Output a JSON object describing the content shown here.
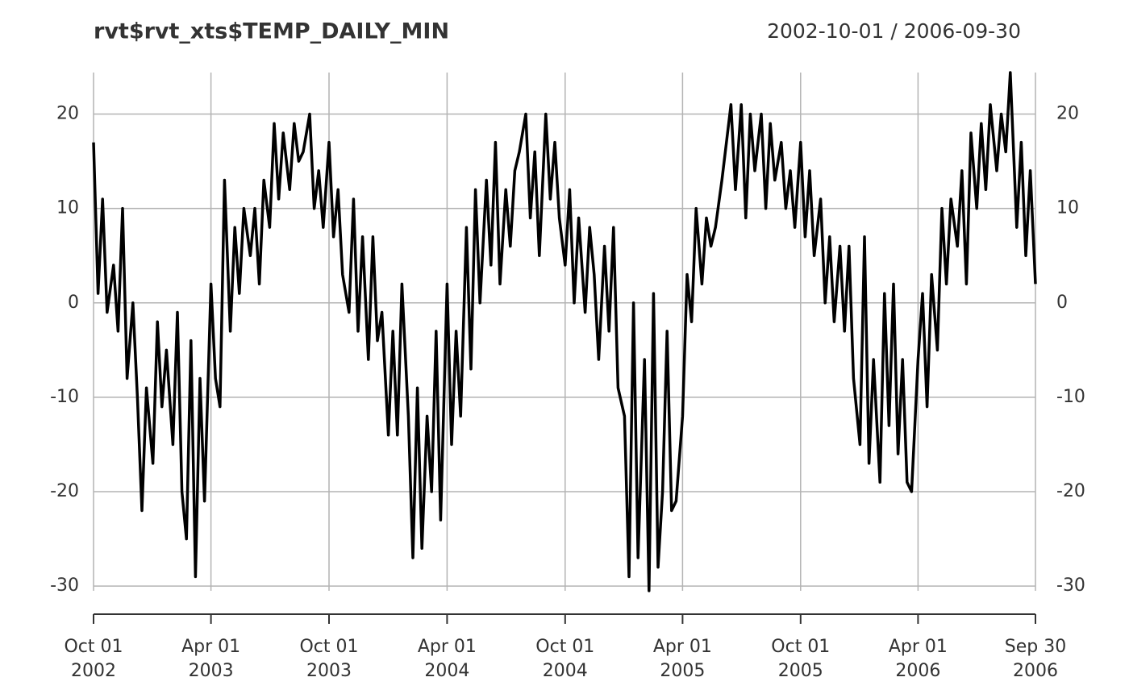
{
  "chart_data": {
    "type": "line",
    "title": "rvt$rvt_xts$TEMP_DAILY_MIN",
    "subtitle": "2002-10-01 / 2006-09-30",
    "color": "#000000",
    "grid": true,
    "xlim": [
      "2002-10-01",
      "2006-09-30"
    ],
    "xticks": [
      {
        "value": "2002-10-01",
        "label": [
          "Oct 01",
          "2002"
        ]
      },
      {
        "value": "2003-04-01",
        "label": [
          "Apr 01",
          "2003"
        ]
      },
      {
        "value": "2003-10-01",
        "label": [
          "Oct 01",
          "2003"
        ]
      },
      {
        "value": "2004-04-01",
        "label": [
          "Apr 01",
          "2004"
        ]
      },
      {
        "value": "2004-10-01",
        "label": [
          "Oct 01",
          "2004"
        ]
      },
      {
        "value": "2005-04-01",
        "label": [
          "Apr 01",
          "2005"
        ]
      },
      {
        "value": "2005-10-01",
        "label": [
          "Oct 01",
          "2005"
        ]
      },
      {
        "value": "2006-04-01",
        "label": [
          "Apr 01",
          "2006"
        ]
      },
      {
        "value": "2006-09-30",
        "label": [
          "Sep 30",
          "2006"
        ]
      }
    ],
    "ylim": [
      -30.5,
      24.4
    ],
    "yticks": [
      20,
      10,
      0,
      -10,
      -20,
      -30
    ],
    "x": [
      "2002-10-01",
      "2002-10-08",
      "2002-10-15",
      "2002-10-22",
      "2002-11-01",
      "2002-11-08",
      "2002-11-15",
      "2002-11-22",
      "2002-12-01",
      "2002-12-08",
      "2002-12-15",
      "2002-12-22",
      "2003-01-01",
      "2003-01-08",
      "2003-01-15",
      "2003-01-22",
      "2003-02-01",
      "2003-02-08",
      "2003-02-15",
      "2003-02-22",
      "2003-03-01",
      "2003-03-08",
      "2003-03-15",
      "2003-03-22",
      "2003-04-01",
      "2003-04-08",
      "2003-04-15",
      "2003-04-22",
      "2003-05-01",
      "2003-05-08",
      "2003-05-15",
      "2003-05-22",
      "2003-06-01",
      "2003-06-08",
      "2003-06-15",
      "2003-06-22",
      "2003-07-01",
      "2003-07-08",
      "2003-07-15",
      "2003-07-22",
      "2003-08-01",
      "2003-08-08",
      "2003-08-15",
      "2003-08-22",
      "2003-09-01",
      "2003-09-08",
      "2003-09-15",
      "2003-09-22",
      "2003-10-01",
      "2003-10-08",
      "2003-10-15",
      "2003-10-22",
      "2003-11-01",
      "2003-11-08",
      "2003-11-15",
      "2003-11-22",
      "2003-12-01",
      "2003-12-08",
      "2003-12-15",
      "2003-12-22",
      "2004-01-01",
      "2004-01-08",
      "2004-01-15",
      "2004-01-22",
      "2004-02-01",
      "2004-02-08",
      "2004-02-15",
      "2004-02-22",
      "2004-03-01",
      "2004-03-08",
      "2004-03-15",
      "2004-03-22",
      "2004-04-01",
      "2004-04-08",
      "2004-04-15",
      "2004-04-22",
      "2004-05-01",
      "2004-05-08",
      "2004-05-15",
      "2004-05-22",
      "2004-06-01",
      "2004-06-08",
      "2004-06-15",
      "2004-06-22",
      "2004-07-01",
      "2004-07-08",
      "2004-07-15",
      "2004-07-22",
      "2004-08-01",
      "2004-08-08",
      "2004-08-15",
      "2004-08-22",
      "2004-09-01",
      "2004-09-08",
      "2004-09-15",
      "2004-09-22",
      "2004-10-01",
      "2004-10-08",
      "2004-10-15",
      "2004-10-22",
      "2004-11-01",
      "2004-11-08",
      "2004-11-15",
      "2004-11-22",
      "2004-12-01",
      "2004-12-08",
      "2004-12-15",
      "2004-12-22",
      "2005-01-01",
      "2005-01-08",
      "2005-01-15",
      "2005-01-22",
      "2005-02-01",
      "2005-02-08",
      "2005-02-15",
      "2005-02-22",
      "2005-03-01",
      "2005-03-08",
      "2005-03-15",
      "2005-03-22",
      "2005-04-01",
      "2005-04-08",
      "2005-04-15",
      "2005-04-22",
      "2005-05-01",
      "2005-05-08",
      "2005-05-15",
      "2005-05-22",
      "2005-06-01",
      "2005-06-08",
      "2005-06-15",
      "2005-06-22",
      "2005-07-01",
      "2005-07-08",
      "2005-07-15",
      "2005-07-22",
      "2005-08-01",
      "2005-08-08",
      "2005-08-15",
      "2005-08-22",
      "2005-09-01",
      "2005-09-08",
      "2005-09-15",
      "2005-09-22",
      "2005-10-01",
      "2005-10-08",
      "2005-10-15",
      "2005-10-22",
      "2005-11-01",
      "2005-11-08",
      "2005-11-15",
      "2005-11-22",
      "2005-12-01",
      "2005-12-08",
      "2005-12-15",
      "2005-12-22",
      "2006-01-01",
      "2006-01-08",
      "2006-01-15",
      "2006-01-22",
      "2006-02-01",
      "2006-02-08",
      "2006-02-15",
      "2006-02-22",
      "2006-03-01",
      "2006-03-08",
      "2006-03-15",
      "2006-03-22",
      "2006-04-01",
      "2006-04-08",
      "2006-04-15",
      "2006-04-22",
      "2006-05-01",
      "2006-05-08",
      "2006-05-15",
      "2006-05-22",
      "2006-06-01",
      "2006-06-08",
      "2006-06-15",
      "2006-06-22",
      "2006-07-01",
      "2006-07-08",
      "2006-07-15",
      "2006-07-22",
      "2006-08-01",
      "2006-08-08",
      "2006-08-15",
      "2006-08-22",
      "2006-09-01",
      "2006-09-08",
      "2006-09-15",
      "2006-09-22",
      "2006-09-30"
    ],
    "values": [
      17,
      1,
      11,
      -1,
      4,
      -3,
      10,
      -8,
      0,
      -10,
      -22,
      -9,
      -17,
      -2,
      -11,
      -5,
      -15,
      -1,
      -20,
      -25,
      -4,
      -29,
      -8,
      -21,
      2,
      -8,
      -11,
      13,
      -3,
      8,
      1,
      10,
      5,
      10,
      2,
      13,
      8,
      19,
      11,
      18,
      12,
      19,
      15,
      16,
      20,
      10,
      14,
      8,
      17,
      7,
      12,
      3,
      -1,
      11,
      -3,
      7,
      -6,
      7,
      -4,
      -1,
      -14,
      -3,
      -14,
      2,
      -12,
      -27,
      -9,
      -26,
      -12,
      -20,
      -3,
      -23,
      2,
      -15,
      -3,
      -12,
      8,
      -7,
      12,
      0,
      13,
      4,
      17,
      2,
      12,
      6,
      14,
      16,
      20,
      9,
      16,
      5,
      20,
      11,
      17,
      9,
      4,
      12,
      0,
      9,
      -1,
      8,
      3,
      -6,
      6,
      -3,
      8,
      -9,
      -12,
      -29,
      0,
      -27,
      -6,
      -30.5,
      1,
      -28,
      -20,
      -3,
      -22,
      -21,
      -12,
      3,
      -2,
      10,
      2,
      9,
      6,
      8,
      13,
      17,
      21,
      12,
      21,
      9,
      20,
      14,
      20,
      10,
      19,
      13,
      17,
      10,
      14,
      8,
      17,
      7,
      14,
      5,
      11,
      0,
      7,
      -2,
      6,
      -3,
      6,
      -8,
      -15,
      7,
      -17,
      -6,
      -19,
      1,
      -13,
      2,
      -16,
      -6,
      -19,
      -20,
      -6,
      1,
      -11,
      3,
      -5,
      10,
      2,
      11,
      6,
      14,
      2,
      18,
      10,
      19,
      12,
      21,
      14,
      20,
      16,
      24.4,
      8,
      17,
      5,
      14,
      2
    ]
  }
}
